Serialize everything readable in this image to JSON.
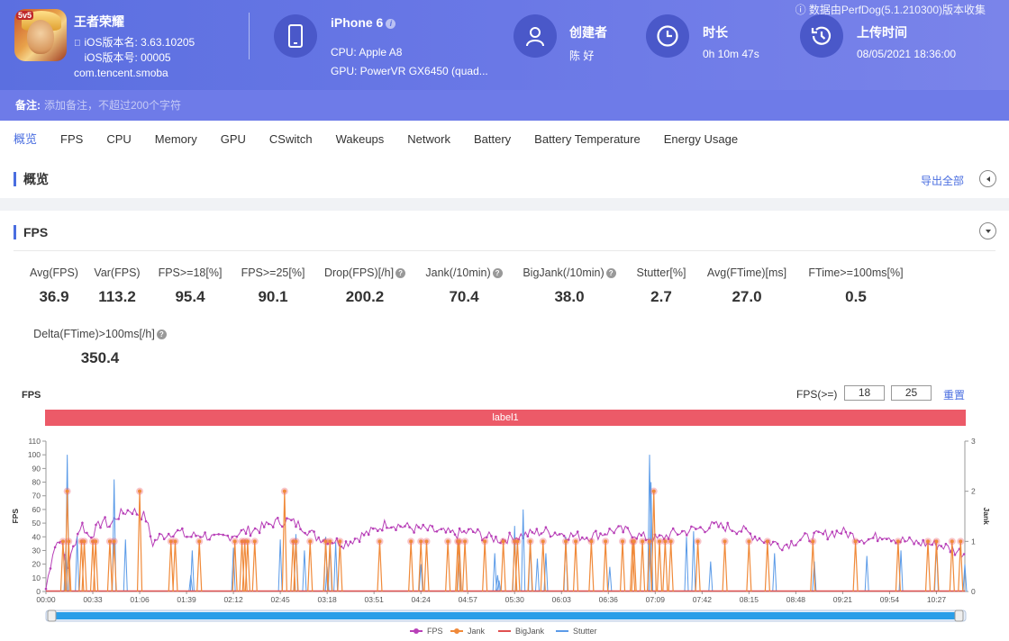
{
  "header": {
    "app_name": "王者荣耀",
    "ios_version_name": "iOS版本名: 3.63.10205",
    "ios_version_code": "iOS版本号: 00005",
    "package": "com.tencent.smoba",
    "device_name": "iPhone 6",
    "cpu": "CPU: Apple A8",
    "gpu": "GPU: PowerVR GX6450 (quad...",
    "creator_label": "创建者",
    "creator_value": "陈 好",
    "duration_label": "时长",
    "duration_value": "0h 10m 47s",
    "upload_label": "上传时间",
    "upload_value": "08/05/2021 18:36:00",
    "perfdog_note": "ⓘ 数据由PerfDog(5.1.210300)版本收集"
  },
  "remark": {
    "label": "备注:",
    "placeholder": "添加备注，不超过200个字符"
  },
  "tabs": [
    "概览",
    "FPS",
    "CPU",
    "Memory",
    "GPU",
    "CSwitch",
    "Wakeups",
    "Network",
    "Battery",
    "Battery Temperature",
    "Energy Usage"
  ],
  "overview": {
    "title": "概览",
    "export": "导出全部"
  },
  "fps_section": {
    "title": "FPS",
    "metrics": [
      {
        "label": "Avg(FPS)",
        "value": "36.9",
        "help": false
      },
      {
        "label": "Var(FPS)",
        "value": "113.2",
        "help": false
      },
      {
        "label": "FPS>=18[%]",
        "value": "95.4",
        "help": false
      },
      {
        "label": "FPS>=25[%]",
        "value": "90.1",
        "help": false
      },
      {
        "label": "Drop(FPS)[/h]",
        "value": "200.2",
        "help": true
      },
      {
        "label": "Jank(/10min)",
        "value": "70.4",
        "help": true
      },
      {
        "label": "BigJank(/10min)",
        "value": "38.0",
        "help": true
      },
      {
        "label": "Stutter[%]",
        "value": "2.7",
        "help": false
      },
      {
        "label": "Avg(FTime)[ms]",
        "value": "27.0",
        "help": false
      },
      {
        "label": "FTime>=100ms[%]",
        "value": "0.5",
        "help": false
      },
      {
        "label": "Delta(FTime)>100ms[/h]",
        "value": "350.4",
        "help": true
      }
    ],
    "chart_title": "FPS",
    "threshold_label": "FPS(>=)",
    "threshold_1": "18",
    "threshold_2": "25",
    "reset": "重置",
    "label_bar": "label1"
  },
  "chart_data": {
    "type": "line",
    "ylabel": "FPS",
    "y2label": "Jank",
    "ylim": [
      0,
      110
    ],
    "y2lim": [
      0,
      3
    ],
    "yticks": [
      0,
      10,
      20,
      30,
      40,
      50,
      60,
      70,
      80,
      90,
      100,
      110
    ],
    "y2ticks": [
      0,
      1,
      2,
      3
    ],
    "x_labels": [
      "00:00",
      "00:33",
      "01:06",
      "01:39",
      "02:12",
      "02:45",
      "03:18",
      "03:51",
      "04:24",
      "04:57",
      "05:30",
      "06:03",
      "06:36",
      "07:09",
      "07:42",
      "08:15",
      "08:48",
      "09:21",
      "09:54",
      "10:27"
    ],
    "x_seconds": [
      0,
      33,
      66,
      99,
      132,
      165,
      198,
      231,
      264,
      297,
      330,
      363,
      396,
      429,
      462,
      495,
      528,
      561,
      594,
      627
    ],
    "x_max_seconds": 647,
    "fps_profile_seconds": [
      0,
      5,
      10,
      15,
      20,
      25,
      30,
      35,
      40,
      45,
      50,
      55,
      60,
      65,
      70,
      75,
      80,
      85,
      90,
      95,
      100,
      110,
      120,
      130,
      140,
      150,
      160,
      170,
      180,
      190,
      200,
      210,
      220,
      230,
      240,
      250,
      260,
      270,
      280,
      290,
      300,
      310,
      320,
      330,
      340,
      350,
      360,
      370,
      380,
      390,
      400,
      410,
      420,
      430,
      440,
      450,
      460,
      470,
      480,
      490,
      500,
      510,
      520,
      530,
      540,
      550,
      560,
      570,
      580,
      590,
      600,
      610,
      620,
      630,
      640,
      647
    ],
    "fps_profile_values": [
      2,
      30,
      40,
      15,
      35,
      50,
      40,
      45,
      52,
      48,
      55,
      58,
      60,
      57,
      55,
      35,
      40,
      42,
      44,
      43,
      40,
      42,
      38,
      41,
      44,
      46,
      50,
      52,
      48,
      40,
      38,
      35,
      40,
      44,
      50,
      48,
      46,
      45,
      43,
      42,
      44,
      40,
      38,
      40,
      42,
      44,
      43,
      41,
      40,
      42,
      45,
      44,
      40,
      38,
      42,
      44,
      46,
      48,
      47,
      45,
      40,
      36,
      34,
      38,
      40,
      42,
      44,
      40,
      38,
      42,
      38,
      36,
      35,
      34,
      30,
      28
    ],
    "series": [
      {
        "name": "FPS",
        "color": "#b840b8"
      },
      {
        "name": "Jank",
        "color": "#f08a3a"
      },
      {
        "name": "BigJank",
        "color": "#e05050"
      },
      {
        "name": "Stutter",
        "color": "#5b9be8"
      }
    ],
    "jank_seconds": [
      12,
      15,
      16,
      25,
      27,
      33,
      35,
      45,
      48,
      66,
      88,
      91,
      108,
      133,
      138,
      140,
      142,
      147,
      168,
      174,
      176,
      186,
      197,
      200,
      207,
      235,
      257,
      264,
      268,
      283,
      290,
      291,
      295,
      309,
      322,
      330,
      332,
      341,
      350,
      366,
      373,
      384,
      394,
      406,
      413,
      414,
      420,
      425,
      428,
      432,
      436,
      440,
      459,
      478,
      495,
      508,
      540,
      570,
      600,
      621,
      627,
      638,
      644
    ],
    "jank_values": [
      1,
      2,
      1,
      1,
      1,
      1,
      1,
      1,
      1,
      2,
      1,
      1,
      1,
      1,
      1,
      1,
      1,
      1,
      2,
      1,
      1,
      1,
      1,
      1,
      1,
      1,
      1,
      1,
      1,
      1,
      1,
      1,
      1,
      1,
      1,
      1,
      1,
      1,
      1,
      1,
      1,
      1,
      1,
      1,
      1,
      1,
      1,
      1,
      2,
      1,
      1,
      1,
      1,
      1,
      1,
      1,
      1,
      1,
      1,
      1,
      1,
      1,
      1
    ],
    "stutter_seconds": [
      14,
      15,
      22,
      48,
      56,
      102,
      103,
      132,
      165,
      176,
      182,
      197,
      198,
      200,
      204,
      264,
      291,
      316,
      318,
      319,
      330,
      336,
      341,
      346,
      352,
      366,
      397,
      425,
      426,
      451,
      456,
      468,
      513,
      541,
      578,
      602,
      627,
      647
    ],
    "stutter_values": [
      32,
      100,
      40,
      82,
      38,
      12,
      30,
      32,
      38,
      42,
      30,
      40,
      18,
      34,
      36,
      20,
      34,
      28,
      12,
      8,
      48,
      60,
      36,
      24,
      28,
      40,
      18,
      100,
      80,
      40,
      44,
      22,
      28,
      22,
      26,
      30,
      36,
      20
    ]
  }
}
